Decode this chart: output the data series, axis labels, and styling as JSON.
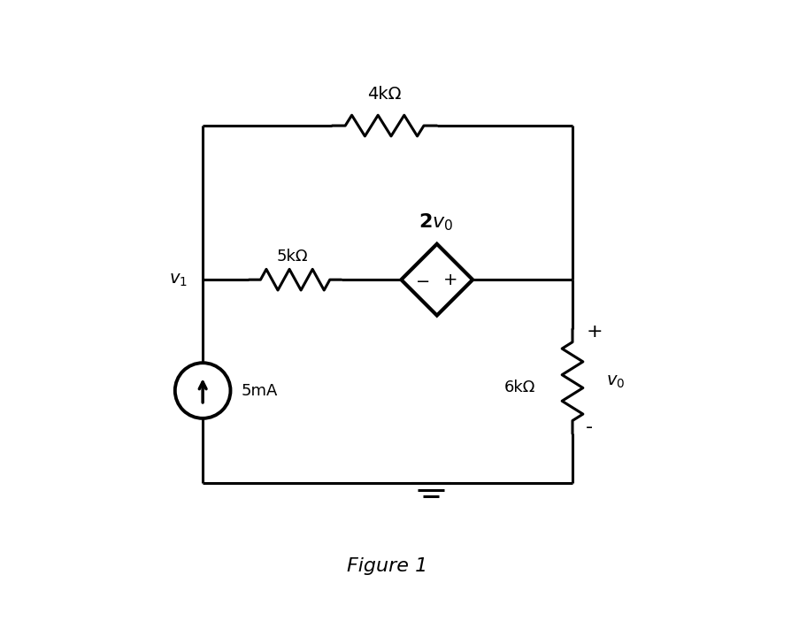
{
  "bg_color": "#ffffff",
  "line_color": "#000000",
  "line_width": 2.2,
  "fig_width": 9.04,
  "fig_height": 7.02,
  "title": "Figure 1",
  "title_fontsize": 16,
  "label_4kohm": "4kΩ",
  "label_5kohm": "5kΩ",
  "label_6kohm": "6kΩ",
  "label_5mA": "5mA"
}
